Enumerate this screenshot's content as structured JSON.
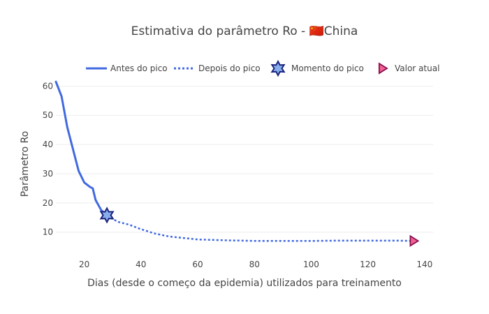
{
  "chart_data": {
    "type": "line",
    "title_text": "Estimativa do parâmetro Ro - ",
    "title_flag": "🇨🇳",
    "title_country": "China",
    "xlabel": "Dias (desde o começo da epidemia) utilizados para treinamento",
    "ylabel": "Parâmetro Ro",
    "xlim": [
      10,
      143
    ],
    "ylim": [
      3,
      62
    ],
    "xticks": [
      20,
      40,
      60,
      80,
      100,
      120,
      140
    ],
    "yticks": [
      10,
      20,
      30,
      40,
      50,
      60
    ],
    "grid": true,
    "legend_position": "top-right",
    "colors": {
      "line": "#4169e1",
      "peak_fill": "#87aeea",
      "peak_stroke": "#1a237e",
      "current_fill": "#f06292",
      "current_stroke": "#880e4f"
    },
    "legend": [
      {
        "label": "Antes do pico",
        "style": "solid"
      },
      {
        "label": "Depois do pico",
        "style": "dotted"
      },
      {
        "label": "Momento do pico",
        "style": "star"
      },
      {
        "label": "Valor atual",
        "style": "triangle"
      }
    ],
    "series": [
      {
        "name": "Antes do pico",
        "x": [
          10,
          12,
          14,
          16,
          18,
          20,
          22,
          23,
          24,
          26,
          28
        ],
        "y": [
          61.5,
          56.5,
          46,
          38.5,
          31,
          27,
          25.5,
          25,
          21,
          17.5,
          16
        ]
      },
      {
        "name": "Depois do pico",
        "x": [
          28,
          32,
          36,
          40,
          45,
          50,
          55,
          60,
          70,
          80,
          90,
          100,
          110,
          120,
          130,
          136
        ],
        "y": [
          15.5,
          13.5,
          12.5,
          11,
          9.5,
          8.5,
          8,
          7.5,
          7.2,
          7,
          7,
          7,
          7.1,
          7.1,
          7.1,
          7
        ]
      }
    ],
    "markers": [
      {
        "name": "Momento do pico",
        "x": 28,
        "y": 15.8,
        "shape": "star"
      },
      {
        "name": "Valor atual",
        "x": 136,
        "y": 7,
        "shape": "triangle"
      }
    ]
  }
}
